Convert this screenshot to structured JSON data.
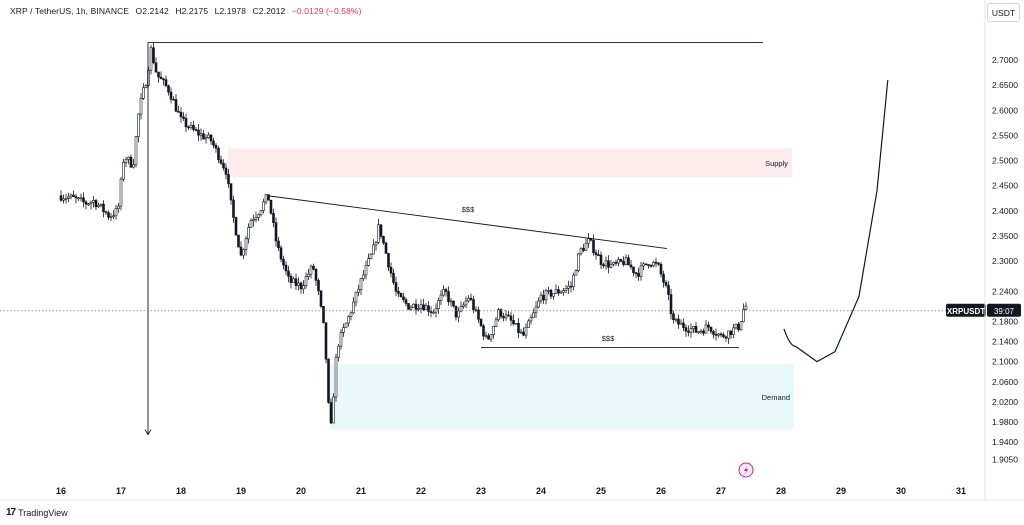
{
  "header": {
    "symbol": "XRP / TetherUS, 1h, BINANCE",
    "open": "O2.2142",
    "high": "H2.2175",
    "low": "L2.1978",
    "close": "C2.2012",
    "change": "−0.0129 (−0.58%)",
    "change_color": "#f23645"
  },
  "currency_button": "USDT",
  "footer": {
    "logo": "17",
    "brand": "TradingView"
  },
  "chart_data": {
    "type": "candlestick",
    "y_ticks": [
      "2.7000",
      "2.6500",
      "2.6000",
      "2.5500",
      "2.5000",
      "2.4500",
      "2.4000",
      "2.3500",
      "2.3000",
      "2.2400",
      "2.1800",
      "2.1400",
      "2.1000",
      "2.0600",
      "2.0200",
      "1.9800",
      "1.9400",
      "1.9050"
    ],
    "x_ticks": [
      "16",
      "17",
      "18",
      "19",
      "20",
      "21",
      "22",
      "23",
      "24",
      "25",
      "26",
      "27",
      "28",
      "29",
      "30",
      "31"
    ],
    "price_tag": {
      "label": "XRPUSDT",
      "countdown": "39:07",
      "value": 2.2012
    },
    "zones": [
      {
        "label": "Supply",
        "y_from": 2.467,
        "y_to": 2.524,
        "color": "#fdecec"
      },
      {
        "label": "Demand",
        "y_from": 1.965,
        "y_to": 2.095,
        "color": "#e9f8f9"
      }
    ],
    "annotations": {
      "upper_liquidity": "$$$",
      "lower_liquidity": "$$$"
    },
    "series_path": [
      [
        16.0,
        2.43
      ],
      [
        16.2,
        2.425
      ],
      [
        16.4,
        2.415
      ],
      [
        16.55,
        2.42
      ],
      [
        16.8,
        2.39
      ],
      [
        16.95,
        2.4
      ],
      [
        17.05,
        2.51
      ],
      [
        17.2,
        2.49
      ],
      [
        17.3,
        2.6
      ],
      [
        17.42,
        2.66
      ],
      [
        17.5,
        2.72
      ],
      [
        17.6,
        2.67
      ],
      [
        17.8,
        2.64
      ],
      [
        18.0,
        2.58
      ],
      [
        18.2,
        2.56
      ],
      [
        18.5,
        2.54
      ],
      [
        18.75,
        2.48
      ],
      [
        18.85,
        2.4
      ],
      [
        19.0,
        2.31
      ],
      [
        19.15,
        2.38
      ],
      [
        19.3,
        2.4
      ],
      [
        19.45,
        2.43
      ],
      [
        19.6,
        2.33
      ],
      [
        19.8,
        2.26
      ],
      [
        20.0,
        2.25
      ],
      [
        20.2,
        2.29
      ],
      [
        20.3,
        2.23
      ],
      [
        20.4,
        2.15
      ],
      [
        20.45,
        2.02
      ],
      [
        20.5,
        1.97
      ],
      [
        20.6,
        2.13
      ],
      [
        20.8,
        2.19
      ],
      [
        21.0,
        2.26
      ],
      [
        21.2,
        2.32
      ],
      [
        21.3,
        2.37
      ],
      [
        21.45,
        2.3
      ],
      [
        21.6,
        2.23
      ],
      [
        21.8,
        2.21
      ],
      [
        22.0,
        2.215
      ],
      [
        22.2,
        2.2
      ],
      [
        22.4,
        2.24
      ],
      [
        22.6,
        2.19
      ],
      [
        22.8,
        2.23
      ],
      [
        23.0,
        2.17
      ],
      [
        23.1,
        2.14
      ],
      [
        23.3,
        2.2
      ],
      [
        23.5,
        2.18
      ],
      [
        23.7,
        2.15
      ],
      [
        23.9,
        2.2
      ],
      [
        24.0,
        2.23
      ],
      [
        24.3,
        2.24
      ],
      [
        24.5,
        2.25
      ],
      [
        24.65,
        2.32
      ],
      [
        24.8,
        2.34
      ],
      [
        25.0,
        2.3
      ],
      [
        25.2,
        2.29
      ],
      [
        25.4,
        2.3
      ],
      [
        25.6,
        2.275
      ],
      [
        25.8,
        2.3
      ],
      [
        25.95,
        2.29
      ],
      [
        26.1,
        2.24
      ],
      [
        26.2,
        2.18
      ],
      [
        26.4,
        2.17
      ],
      [
        26.6,
        2.16
      ],
      [
        26.8,
        2.17
      ],
      [
        27.0,
        2.15
      ],
      [
        27.15,
        2.16
      ],
      [
        27.3,
        2.17
      ],
      [
        27.4,
        2.215
      ],
      [
        27.45,
        2.2012
      ]
    ],
    "projection_path": [
      [
        28.05,
        2.165
      ],
      [
        28.25,
        2.13
      ],
      [
        28.6,
        2.1
      ],
      [
        28.9,
        2.12
      ],
      [
        29.3,
        2.23
      ],
      [
        29.6,
        2.44
      ],
      [
        29.78,
        2.66
      ]
    ],
    "lines": {
      "resistance_top": {
        "x_from": 17.45,
        "x_to": 27.7,
        "y": 2.735
      },
      "descending_trend": {
        "x_from": 19.45,
        "y_from": 2.43,
        "x_to": 26.1,
        "y_to": 2.325
      },
      "support_bottom": {
        "x_from": 23.0,
        "x_to": 27.3,
        "y": 2.128
      },
      "dotted_last_price": {
        "y": 2.2012
      },
      "arrow_down": {
        "x": 17.45,
        "y_from": 2.735,
        "y_to": 1.955
      }
    }
  }
}
